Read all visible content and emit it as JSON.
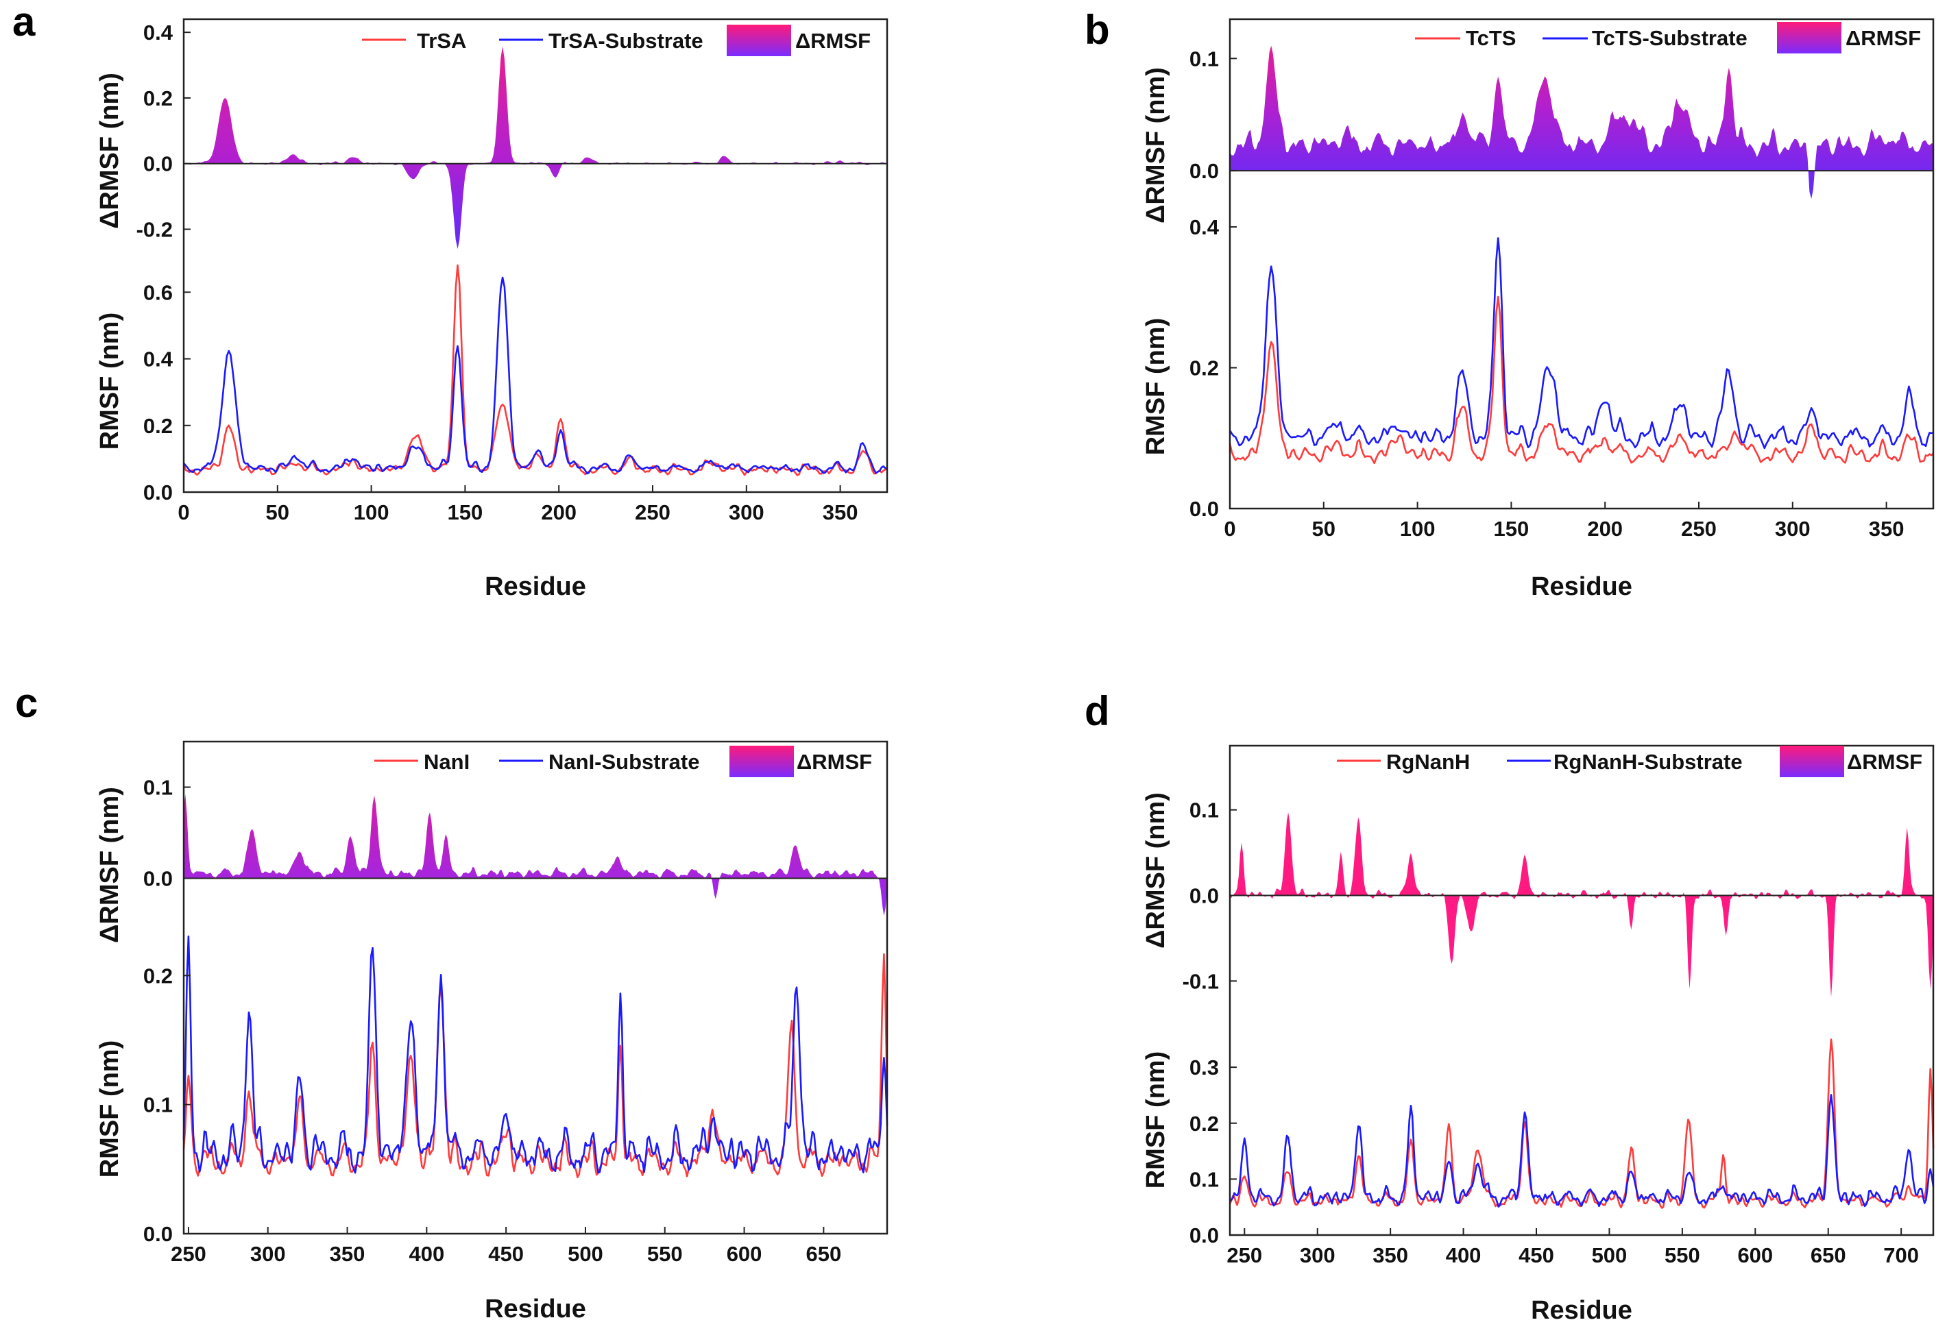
{
  "chart_data": [
    {
      "type": "line",
      "panel": "a",
      "xlabel": "Residue",
      "ylabel_top": "ΔRMSF (nm)",
      "ylabel_bottom": "RMSF (nm)",
      "xlim": [
        0,
        375
      ],
      "xticks": [
        "0",
        "50",
        "100",
        "150",
        "200",
        "250",
        "300",
        "350"
      ],
      "yticks_bottom": [
        "0.0",
        "0.2",
        "0.4",
        "0.6"
      ],
      "yticks_top": [
        "-0.2",
        "0.0",
        "0.2",
        "0.4"
      ],
      "legend": [
        "TrSA",
        "TrSA-Substrate",
        "ΔRMSF"
      ],
      "grid": false,
      "colors": {
        "apo": "#ff3b3b",
        "complex": "#1a1aff",
        "delta_top": "#ff1a7a",
        "delta_bottom": "#7a2cff"
      },
      "series": [
        {
          "name": "TrSA",
          "baseline": 0.065,
          "noise": 0.012,
          "peaks": [
            [
              24,
              0.2,
              4
            ],
            [
              60,
              0.09,
              4
            ],
            [
              90,
              0.1,
              3
            ],
            [
              124,
              0.16,
              6
            ],
            [
              146,
              0.69,
              3
            ],
            [
              170,
              0.26,
              5
            ],
            [
              188,
              0.12,
              3
            ],
            [
              201,
              0.23,
              3
            ],
            [
              238,
              0.1,
              3
            ],
            [
              283,
              0.09,
              4
            ],
            [
              362,
              0.12,
              3
            ]
          ]
        },
        {
          "name": "TrSA-Substrate",
          "baseline": 0.07,
          "noise": 0.012,
          "peaks": [
            [
              24,
              0.42,
              5
            ],
            [
              60,
              0.11,
              4
            ],
            [
              90,
              0.11,
              3
            ],
            [
              124,
              0.13,
              6
            ],
            [
              146,
              0.45,
              3
            ],
            [
              170,
              0.65,
              4
            ],
            [
              188,
              0.13,
              3
            ],
            [
              201,
              0.19,
              3
            ],
            [
              238,
              0.11,
              3
            ],
            [
              283,
              0.09,
              4
            ],
            [
              362,
              0.14,
              3
            ]
          ]
        },
        {
          "name": "ΔRMSF",
          "baseline": 0.0,
          "noise": 0.004,
          "peaks": [
            [
              22,
              0.2,
              5
            ],
            [
              58,
              0.03,
              4
            ],
            [
              90,
              0.02,
              4
            ],
            [
              122,
              -0.05,
              4
            ],
            [
              146,
              -0.26,
              3
            ],
            [
              170,
              0.36,
              3
            ],
            [
              198,
              -0.04,
              3
            ],
            [
              215,
              0.02,
              3
            ],
            [
              288,
              0.02,
              3
            ],
            [
              350,
              0.01,
              3
            ]
          ]
        }
      ],
      "top_ylim": [
        -0.27,
        0.44
      ],
      "bottom_ylim": [
        0.0,
        0.72
      ],
      "n_points": 375
    },
    {
      "type": "line",
      "panel": "b",
      "xlabel": "Residue",
      "ylabel_top": "ΔRMSF (nm)",
      "ylabel_bottom": "RMSF (nm)",
      "xlim": [
        0,
        375
      ],
      "xticks": [
        "0",
        "50",
        "100",
        "150",
        "200",
        "250",
        "300",
        "350"
      ],
      "yticks_bottom": [
        "0.0",
        "0.2",
        "0.4"
      ],
      "yticks_top": [
        "0.0",
        "0.1"
      ],
      "legend": [
        "TcTS",
        "TcTS-Substrate",
        "ΔRMSF"
      ],
      "grid": false,
      "colors": {
        "apo": "#ff3b3b",
        "complex": "#1a1aff",
        "delta_top": "#ff1a7a",
        "delta_bottom": "#7a2cff"
      },
      "series": [
        {
          "name": "TcTS",
          "baseline": 0.075,
          "noise": 0.01,
          "peaks": [
            [
              22,
              0.24,
              4
            ],
            [
              58,
              0.09,
              4
            ],
            [
              90,
              0.11,
              3
            ],
            [
              124,
              0.14,
              4
            ],
            [
              143,
              0.3,
              3
            ],
            [
              170,
              0.12,
              5
            ],
            [
              200,
              0.1,
              4
            ],
            [
              240,
              0.1,
              4
            ],
            [
              270,
              0.11,
              4
            ],
            [
              310,
              0.12,
              3
            ],
            [
              362,
              0.1,
              3
            ]
          ]
        },
        {
          "name": "TcTS-Substrate",
          "baseline": 0.1,
          "noise": 0.012,
          "peaks": [
            [
              22,
              0.35,
              4
            ],
            [
              58,
              0.12,
              4
            ],
            [
              90,
              0.12,
              3
            ],
            [
              124,
              0.19,
              4
            ],
            [
              143,
              0.39,
              3
            ],
            [
              170,
              0.2,
              5
            ],
            [
              200,
              0.16,
              4
            ],
            [
              240,
              0.15,
              4
            ],
            [
              266,
              0.19,
              4
            ],
            [
              310,
              0.14,
              3
            ],
            [
              362,
              0.16,
              3
            ]
          ]
        },
        {
          "name": "ΔRMSF",
          "baseline": 0.022,
          "noise": 0.008,
          "peaks": [
            [
              22,
              0.105,
              4
            ],
            [
              60,
              0.03,
              5
            ],
            [
              125,
              0.05,
              4
            ],
            [
              143,
              0.088,
              3
            ],
            [
              168,
              0.08,
              6
            ],
            [
              210,
              0.05,
              8
            ],
            [
              240,
              0.06,
              6
            ],
            [
              266,
              0.095,
              3
            ],
            [
              310,
              -0.025,
              2
            ],
            [
              350,
              0.03,
              5
            ]
          ]
        }
      ],
      "top_ylim": [
        -0.025,
        0.135
      ],
      "bottom_ylim": [
        0.0,
        0.44
      ],
      "n_points": 375
    },
    {
      "type": "line",
      "panel": "c",
      "xlabel": "Residue",
      "ylabel_top": "ΔRMSF (nm)",
      "ylabel_bottom": "RMSF (nm)",
      "xlim": [
        247,
        690
      ],
      "xticks": [
        "250",
        "300",
        "350",
        "400",
        "450",
        "500",
        "550",
        "600",
        "650"
      ],
      "yticks_bottom": [
        "0.0",
        "0.1",
        "0.2"
      ],
      "yticks_top": [
        "0.0",
        "0.1"
      ],
      "legend": [
        "NanI",
        "NanI-Substrate",
        "ΔRMSF"
      ],
      "grid": false,
      "colors": {
        "apo": "#ff3b3b",
        "complex": "#1a1aff",
        "delta_top": "#ff1a7a",
        "delta_bottom": "#7a2cff"
      },
      "series": [
        {
          "name": "NanI",
          "baseline": 0.055,
          "noise": 0.01,
          "peaks": [
            [
              250,
              0.12,
              2
            ],
            [
              288,
              0.11,
              3
            ],
            [
              320,
              0.1,
              3
            ],
            [
              366,
              0.14,
              3
            ],
            [
              390,
              0.13,
              4
            ],
            [
              409,
              0.2,
              3
            ],
            [
              450,
              0.08,
              3
            ],
            [
              522,
              0.14,
              2
            ],
            [
              580,
              0.1,
              3
            ],
            [
              630,
              0.16,
              3
            ],
            [
              688,
              0.22,
              2
            ]
          ]
        },
        {
          "name": "NanI-Substrate",
          "baseline": 0.06,
          "noise": 0.012,
          "peaks": [
            [
              250,
              0.22,
              2
            ],
            [
              288,
              0.17,
              3
            ],
            [
              320,
              0.12,
              3
            ],
            [
              366,
              0.22,
              3
            ],
            [
              390,
              0.16,
              4
            ],
            [
              409,
              0.2,
              3
            ],
            [
              450,
              0.09,
              3
            ],
            [
              522,
              0.18,
              2
            ],
            [
              580,
              0.09,
              3
            ],
            [
              633,
              0.2,
              3
            ],
            [
              688,
              0.14,
              2
            ]
          ]
        },
        {
          "name": "ΔRMSF",
          "baseline": 0.005,
          "noise": 0.004,
          "peaks": [
            [
              248,
              0.09,
              2
            ],
            [
              290,
              0.05,
              4
            ],
            [
              320,
              0.03,
              4
            ],
            [
              352,
              0.05,
              3
            ],
            [
              367,
              0.09,
              3
            ],
            [
              402,
              0.07,
              3
            ],
            [
              412,
              0.04,
              3
            ],
            [
              520,
              0.025,
              3
            ],
            [
              582,
              -0.025,
              2
            ],
            [
              632,
              0.04,
              3
            ],
            [
              688,
              -0.04,
              2
            ]
          ]
        }
      ],
      "top_ylim": [
        -0.05,
        0.15
      ],
      "bottom_ylim": [
        0.0,
        0.24
      ],
      "n_points": 443
    },
    {
      "type": "line",
      "panel": "d",
      "xlabel": "Residue",
      "ylabel_top": "ΔRMSF (nm)",
      "ylabel_bottom": "RMSF (nm)",
      "xlim": [
        240,
        722
      ],
      "xticks": [
        "250",
        "300",
        "350",
        "400",
        "450",
        "500",
        "550",
        "600",
        "650",
        "700"
      ],
      "yticks_bottom": [
        "0.0",
        "0.1",
        "0.2",
        "0.3"
      ],
      "yticks_top": [
        "-0.1",
        "0.0",
        "0.1"
      ],
      "legend": [
        "RgNanH",
        "RgNanH-Substrate",
        "ΔRMSF"
      ],
      "grid": false,
      "colors": {
        "apo": "#ff3b3b",
        "complex": "#1a1aff",
        "delta_top": "#ff1a7a",
        "delta_bottom": "#ff1a7a"
      },
      "series": [
        {
          "name": "RgNanH",
          "baseline": 0.06,
          "noise": 0.01,
          "peaks": [
            [
              250,
              0.1,
              3
            ],
            [
              280,
              0.11,
              3
            ],
            [
              328,
              0.14,
              3
            ],
            [
              364,
              0.16,
              3
            ],
            [
              390,
              0.19,
              3
            ],
            [
              410,
              0.16,
              4
            ],
            [
              442,
              0.2,
              3
            ],
            [
              515,
              0.15,
              3
            ],
            [
              554,
              0.21,
              3
            ],
            [
              578,
              0.15,
              2
            ],
            [
              652,
              0.35,
              3
            ],
            [
              705,
              0.09,
              3
            ],
            [
              720,
              0.3,
              2
            ]
          ]
        },
        {
          "name": "RgNanH-Substrate",
          "baseline": 0.065,
          "noise": 0.012,
          "peaks": [
            [
              250,
              0.16,
              3
            ],
            [
              280,
              0.17,
              3
            ],
            [
              328,
              0.2,
              3
            ],
            [
              364,
              0.21,
              3
            ],
            [
              390,
              0.13,
              3
            ],
            [
              410,
              0.13,
              4
            ],
            [
              442,
              0.22,
              3
            ],
            [
              515,
              0.11,
              3
            ],
            [
              554,
              0.11,
              3
            ],
            [
              578,
              0.1,
              2
            ],
            [
              652,
              0.25,
              3
            ],
            [
              705,
              0.16,
              3
            ],
            [
              720,
              0.12,
              2
            ]
          ]
        },
        {
          "name": "ΔRMSF",
          "baseline": 0.0,
          "noise": 0.004,
          "peaks": [
            [
              248,
              0.06,
              2
            ],
            [
              280,
              0.1,
              3
            ],
            [
              316,
              0.05,
              2
            ],
            [
              328,
              0.09,
              3
            ],
            [
              364,
              0.05,
              3
            ],
            [
              392,
              -0.08,
              3
            ],
            [
              405,
              -0.04,
              4
            ],
            [
              442,
              0.045,
              3
            ],
            [
              515,
              -0.04,
              2
            ],
            [
              555,
              -0.11,
              2
            ],
            [
              580,
              -0.05,
              2
            ],
            [
              652,
              -0.12,
              2
            ],
            [
              704,
              0.08,
              2
            ],
            [
              720,
              -0.11,
              2
            ]
          ]
        }
      ],
      "top_ylim": [
        -0.155,
        0.175
      ],
      "bottom_ylim": [
        0.0,
        0.37
      ],
      "n_points": 482
    }
  ],
  "panels": {
    "a": {
      "letter": "a",
      "legend_apo": "TrSA",
      "legend_complex": "TrSA-Substrate",
      "legend_delta": "ΔRMSF"
    },
    "b": {
      "letter": "b",
      "legend_apo": "TcTS",
      "legend_complex": "TcTS-Substrate",
      "legend_delta": "ΔRMSF"
    },
    "c": {
      "letter": "c",
      "legend_apo": "NanI",
      "legend_complex": "NanI-Substrate",
      "legend_delta": "ΔRMSF"
    },
    "d": {
      "letter": "d",
      "legend_apo": "RgNanH",
      "legend_complex": "RgNanH-Substrate",
      "legend_delta": "ΔRMSF"
    }
  },
  "labels": {
    "xlabel": "Residue",
    "ylabel_top": "ΔRMSF (nm)",
    "ylabel_bottom": "RMSF (nm)"
  }
}
